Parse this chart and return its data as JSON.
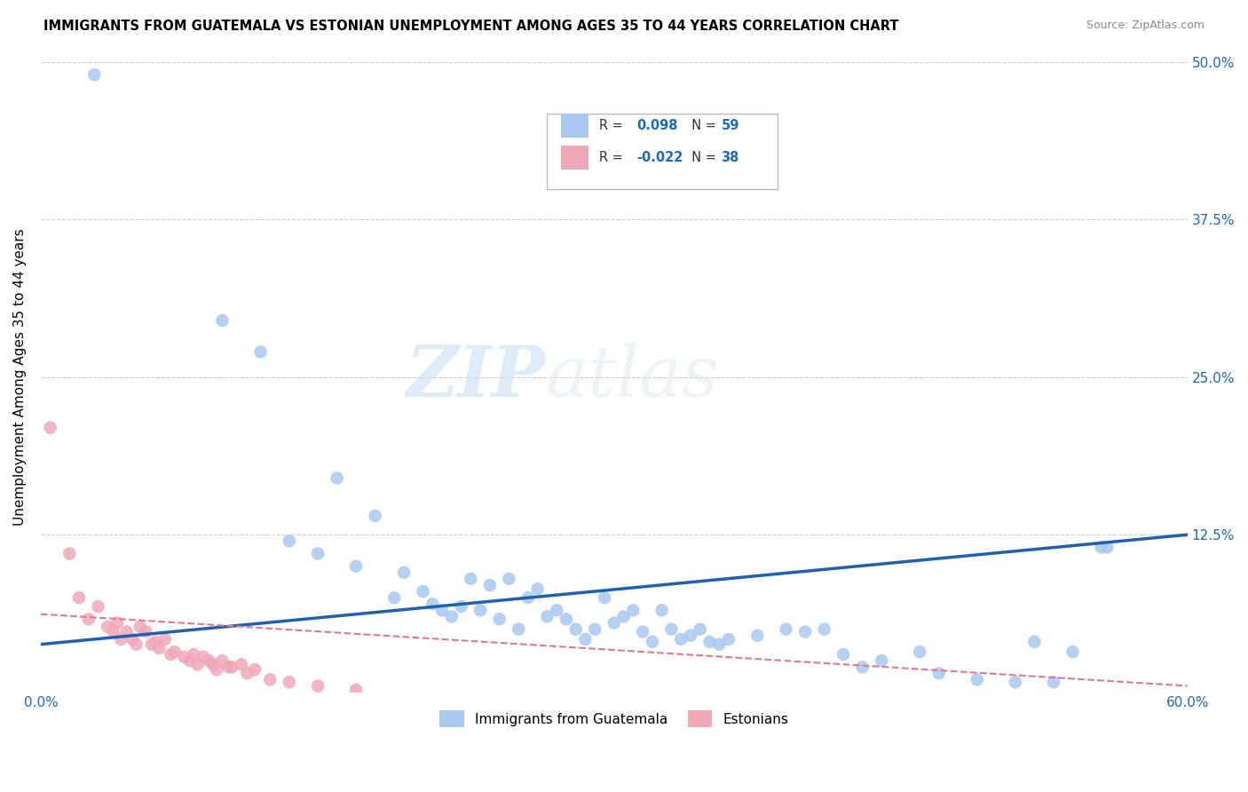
{
  "title": "IMMIGRANTS FROM GUATEMALA VS ESTONIAN UNEMPLOYMENT AMONG AGES 35 TO 44 YEARS CORRELATION CHART",
  "source": "Source: ZipAtlas.com",
  "ylabel": "Unemployment Among Ages 35 to 44 years",
  "xlim": [
    0.0,
    0.6
  ],
  "ylim": [
    0.0,
    0.5
  ],
  "xticks": [
    0.0,
    0.1,
    0.2,
    0.3,
    0.4,
    0.5,
    0.6
  ],
  "xticklabels": [
    "0.0%",
    "",
    "",
    "",
    "",
    "",
    "60.0%"
  ],
  "yticks": [
    0.0,
    0.125,
    0.25,
    0.375,
    0.5
  ],
  "yticklabels": [
    "",
    "12.5%",
    "25.0%",
    "37.5%",
    "50.0%"
  ],
  "blue_R": 0.098,
  "blue_N": 59,
  "pink_R": -0.022,
  "pink_N": 38,
  "blue_color": "#a8c8f0",
  "pink_color": "#f0a8b8",
  "blue_line_color": "#2060b0",
  "pink_line_color": "#e07890",
  "blue_line_x": [
    0.0,
    0.6
  ],
  "blue_line_y": [
    0.038,
    0.125
  ],
  "pink_line_x": [
    0.0,
    0.6
  ],
  "pink_line_y": [
    0.062,
    0.005
  ],
  "blue_scatter_x": [
    0.028,
    0.095,
    0.115,
    0.13,
    0.145,
    0.155,
    0.165,
    0.175,
    0.185,
    0.19,
    0.2,
    0.205,
    0.21,
    0.215,
    0.22,
    0.225,
    0.23,
    0.235,
    0.24,
    0.245,
    0.25,
    0.255,
    0.26,
    0.265,
    0.27,
    0.275,
    0.28,
    0.285,
    0.29,
    0.295,
    0.3,
    0.305,
    0.31,
    0.315,
    0.32,
    0.325,
    0.33,
    0.335,
    0.34,
    0.345,
    0.35,
    0.355,
    0.36,
    0.375,
    0.39,
    0.4,
    0.41,
    0.42,
    0.43,
    0.44,
    0.46,
    0.47,
    0.49,
    0.51,
    0.52,
    0.53,
    0.54,
    0.555,
    0.558
  ],
  "blue_scatter_y": [
    0.49,
    0.295,
    0.27,
    0.12,
    0.11,
    0.17,
    0.1,
    0.14,
    0.075,
    0.095,
    0.08,
    0.07,
    0.065,
    0.06,
    0.068,
    0.09,
    0.065,
    0.085,
    0.058,
    0.09,
    0.05,
    0.075,
    0.082,
    0.06,
    0.065,
    0.058,
    0.05,
    0.042,
    0.05,
    0.075,
    0.055,
    0.06,
    0.065,
    0.048,
    0.04,
    0.065,
    0.05,
    0.042,
    0.045,
    0.05,
    0.04,
    0.038,
    0.042,
    0.045,
    0.05,
    0.048,
    0.05,
    0.03,
    0.02,
    0.025,
    0.032,
    0.015,
    0.01,
    0.008,
    0.04,
    0.008,
    0.032,
    0.115,
    0.115
  ],
  "pink_scatter_x": [
    0.005,
    0.015,
    0.02,
    0.025,
    0.03,
    0.035,
    0.038,
    0.04,
    0.042,
    0.045,
    0.048,
    0.05,
    0.052,
    0.055,
    0.058,
    0.06,
    0.062,
    0.065,
    0.068,
    0.07,
    0.075,
    0.078,
    0.08,
    0.082,
    0.085,
    0.088,
    0.09,
    0.092,
    0.095,
    0.098,
    0.1,
    0.105,
    0.108,
    0.112,
    0.12,
    0.13,
    0.145,
    0.165
  ],
  "pink_scatter_y": [
    0.21,
    0.11,
    0.075,
    0.058,
    0.068,
    0.052,
    0.048,
    0.055,
    0.042,
    0.048,
    0.042,
    0.038,
    0.052,
    0.048,
    0.038,
    0.04,
    0.035,
    0.042,
    0.03,
    0.032,
    0.028,
    0.025,
    0.03,
    0.022,
    0.028,
    0.025,
    0.022,
    0.018,
    0.025,
    0.02,
    0.02,
    0.022,
    0.015,
    0.018,
    0.01,
    0.008,
    0.005,
    0.002
  ],
  "watermark_zip": "ZIP",
  "watermark_atlas": "atlas",
  "legend_label_blue": "Immigrants from Guatemala",
  "legend_label_pink": "Estonians",
  "background_color": "#ffffff",
  "grid_color": "#cccccc"
}
